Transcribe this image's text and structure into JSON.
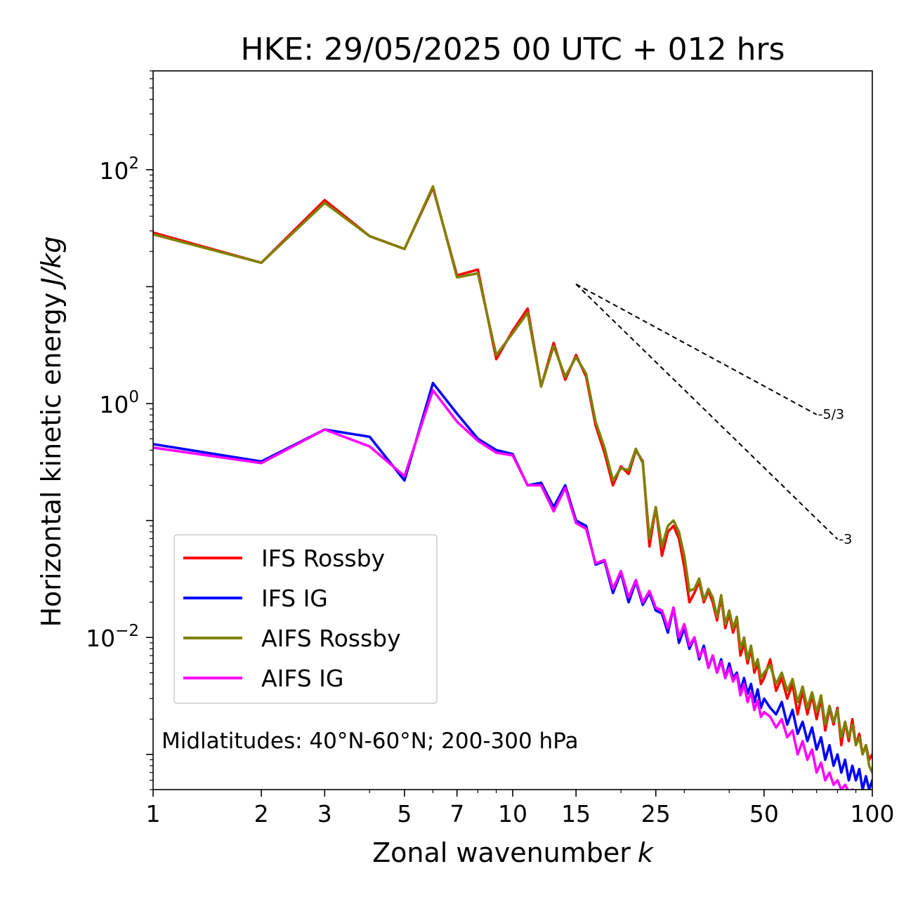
{
  "chart_data": {
    "type": "line",
    "title": "HKE: 29/05/2025 00 UTC + 012 hrs",
    "xlabel": "Zonal wavenumber",
    "xlabel_var": "k",
    "ylabel": "Horizontal kinetic energy",
    "ylabel_unit": "J/kg",
    "xscale": "log",
    "yscale": "log",
    "xlim": [
      1,
      100
    ],
    "ylim": [
      0.0005,
      700
    ],
    "xticks": [
      1,
      2,
      3,
      5,
      7,
      10,
      15,
      25,
      50,
      100
    ],
    "xtick_labels": [
      "1",
      "2",
      "3",
      "5",
      "7",
      "10",
      "15",
      "25",
      "50",
      "100"
    ],
    "yticks": [
      {
        "value": 100,
        "base": "10",
        "exp": "2"
      },
      {
        "value": 1,
        "base": "10",
        "exp": "0"
      },
      {
        "value": 0.01,
        "base": "10",
        "exp": "−2"
      }
    ],
    "grid": false,
    "legend_position": "lower-left",
    "annotation": "Midlatitudes: 40°N-60°N; 200-300 hPa",
    "reference_slopes": [
      {
        "label": "-5/3",
        "slope": -1.6667,
        "x_start": 15,
        "y_start": 10.5,
        "x_end": 70,
        "color": "#000000",
        "style": "dashed"
      },
      {
        "label": "-3",
        "slope": -3,
        "x_start": 15,
        "y_start": 10.5,
        "x_end": 80,
        "color": "#000000",
        "style": "dashed"
      }
    ],
    "series": [
      {
        "name": "IFS Rossby",
        "color": "#ff0000",
        "x": [
          1,
          2,
          3,
          4,
          5,
          6,
          7,
          8,
          9,
          10,
          11,
          12,
          13,
          14,
          15,
          16,
          17,
          18,
          19,
          20,
          21,
          22,
          23,
          24,
          25,
          26,
          27,
          28,
          29,
          30,
          31,
          32,
          33,
          34,
          35,
          36,
          37,
          38,
          39,
          40,
          41,
          42,
          43,
          44,
          45,
          46,
          47,
          48,
          49,
          50,
          52,
          54,
          56,
          58,
          60,
          62,
          64,
          66,
          68,
          70,
          72,
          74,
          76,
          78,
          80,
          82,
          84,
          86,
          88,
          90,
          92,
          94,
          96,
          98,
          100
        ],
        "y": [
          29,
          16,
          55,
          27,
          21,
          70,
          12.5,
          14,
          2.4,
          4.2,
          6.5,
          1.4,
          3.3,
          1.6,
          2.6,
          1.7,
          0.65,
          0.38,
          0.2,
          0.29,
          0.25,
          0.4,
          0.32,
          0.06,
          0.13,
          0.05,
          0.08,
          0.09,
          0.07,
          0.04,
          0.02,
          0.024,
          0.03,
          0.02,
          0.025,
          0.02,
          0.014,
          0.022,
          0.012,
          0.016,
          0.011,
          0.014,
          0.007,
          0.009,
          0.006,
          0.008,
          0.005,
          0.006,
          0.004,
          0.0045,
          0.0065,
          0.0035,
          0.0045,
          0.003,
          0.004,
          0.0022,
          0.0035,
          0.0022,
          0.0032,
          0.002,
          0.003,
          0.0016,
          0.0025,
          0.0018,
          0.0025,
          0.0012,
          0.0019,
          0.0013,
          0.002,
          0.0012,
          0.0015,
          0.001,
          0.0012,
          0.0009,
          0.001
        ]
      },
      {
        "name": "IFS IG",
        "color": "#0000ff",
        "x": [
          1,
          2,
          3,
          4,
          5,
          6,
          7,
          8,
          9,
          10,
          11,
          12,
          13,
          14,
          15,
          16,
          17,
          18,
          19,
          20,
          21,
          22,
          23,
          24,
          25,
          26,
          27,
          28,
          29,
          30,
          31,
          32,
          33,
          34,
          35,
          36,
          37,
          38,
          39,
          40,
          41,
          42,
          43,
          44,
          45,
          46,
          47,
          48,
          49,
          50,
          52,
          54,
          56,
          58,
          60,
          62,
          64,
          66,
          68,
          70,
          72,
          74,
          76,
          78,
          80,
          82,
          84,
          86,
          88,
          90,
          92,
          94,
          96,
          98,
          100
        ],
        "y": [
          0.45,
          0.32,
          0.6,
          0.52,
          0.22,
          1.5,
          0.82,
          0.5,
          0.4,
          0.37,
          0.2,
          0.21,
          0.13,
          0.2,
          0.1,
          0.09,
          0.042,
          0.045,
          0.024,
          0.036,
          0.02,
          0.03,
          0.019,
          0.024,
          0.017,
          0.016,
          0.011,
          0.018,
          0.009,
          0.012,
          0.008,
          0.01,
          0.0065,
          0.0085,
          0.0055,
          0.007,
          0.005,
          0.0065,
          0.0045,
          0.006,
          0.0045,
          0.005,
          0.0035,
          0.0045,
          0.0033,
          0.004,
          0.0028,
          0.0036,
          0.0025,
          0.003,
          0.0025,
          0.0022,
          0.0028,
          0.0018,
          0.0024,
          0.0015,
          0.0019,
          0.0013,
          0.0017,
          0.0011,
          0.0014,
          0.0009,
          0.0012,
          0.0008,
          0.001,
          0.0007,
          0.0009,
          0.0006,
          0.0008,
          0.0006,
          0.00075,
          0.0005,
          0.00065,
          0.0005,
          0.0006
        ]
      },
      {
        "name": "AIFS Rossby",
        "color": "#808000",
        "x": [
          1,
          2,
          3,
          4,
          5,
          6,
          7,
          8,
          9,
          10,
          11,
          12,
          13,
          14,
          15,
          16,
          17,
          18,
          19,
          20,
          21,
          22,
          23,
          24,
          25,
          26,
          27,
          28,
          29,
          30,
          31,
          32,
          33,
          34,
          35,
          36,
          37,
          38,
          39,
          40,
          41,
          42,
          43,
          44,
          45,
          46,
          47,
          48,
          49,
          50,
          52,
          54,
          56,
          58,
          60,
          62,
          64,
          66,
          68,
          70,
          72,
          74,
          76,
          78,
          80,
          82,
          84,
          86,
          88,
          90,
          92,
          94,
          96,
          98,
          100
        ],
        "y": [
          28,
          16,
          52,
          27,
          21,
          72,
          12,
          13,
          2.6,
          4,
          6,
          1.4,
          3.1,
          1.7,
          2.5,
          1.8,
          0.7,
          0.42,
          0.22,
          0.28,
          0.27,
          0.41,
          0.31,
          0.07,
          0.13,
          0.06,
          0.09,
          0.1,
          0.08,
          0.05,
          0.025,
          0.026,
          0.032,
          0.021,
          0.026,
          0.022,
          0.015,
          0.023,
          0.013,
          0.017,
          0.012,
          0.015,
          0.008,
          0.01,
          0.0065,
          0.0085,
          0.0055,
          0.0065,
          0.0045,
          0.005,
          0.0058,
          0.004,
          0.005,
          0.0035,
          0.0044,
          0.0028,
          0.0038,
          0.0025,
          0.0034,
          0.0023,
          0.0032,
          0.0018,
          0.0026,
          0.0019,
          0.0024,
          0.0014,
          0.0019,
          0.0014,
          0.0018,
          0.0012,
          0.0014,
          0.001,
          0.0012,
          0.0008,
          0.0007
        ]
      },
      {
        "name": "AIFS IG",
        "color": "#ff00ff",
        "x": [
          1,
          2,
          3,
          4,
          5,
          6,
          7,
          8,
          9,
          10,
          11,
          12,
          13,
          14,
          15,
          16,
          17,
          18,
          19,
          20,
          21,
          22,
          23,
          24,
          25,
          26,
          27,
          28,
          29,
          30,
          31,
          32,
          33,
          34,
          35,
          36,
          37,
          38,
          39,
          40,
          41,
          42,
          43,
          44,
          45,
          46,
          47,
          48,
          49,
          50,
          52,
          54,
          56,
          58,
          60,
          62,
          64,
          66,
          68,
          70,
          72,
          74,
          76,
          78,
          80,
          82,
          84,
          86,
          88,
          90
        ],
        "y": [
          0.42,
          0.31,
          0.6,
          0.43,
          0.24,
          1.3,
          0.7,
          0.48,
          0.38,
          0.36,
          0.2,
          0.2,
          0.12,
          0.19,
          0.095,
          0.085,
          0.043,
          0.046,
          0.026,
          0.037,
          0.022,
          0.031,
          0.02,
          0.025,
          0.018,
          0.017,
          0.012,
          0.018,
          0.01,
          0.013,
          0.0085,
          0.01,
          0.0068,
          0.008,
          0.0055,
          0.007,
          0.005,
          0.0062,
          0.0045,
          0.0055,
          0.0042,
          0.0048,
          0.0032,
          0.004,
          0.0028,
          0.0034,
          0.0024,
          0.0029,
          0.0021,
          0.0023,
          0.0021,
          0.0017,
          0.002,
          0.0014,
          0.0016,
          0.001,
          0.0013,
          0.0009,
          0.0011,
          0.0007,
          0.00085,
          0.0006,
          0.0007,
          0.00055,
          0.0006,
          0.0005,
          0.00055,
          0.00048,
          0.0005,
          0.00046
        ]
      }
    ]
  }
}
